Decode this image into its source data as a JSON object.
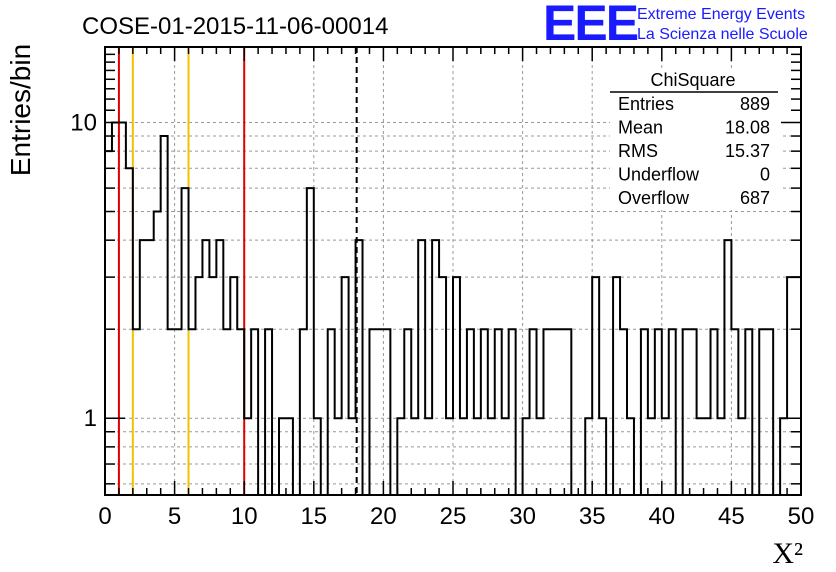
{
  "chart_data": {
    "type": "histogram",
    "title": "COSE-01-2015-11-06-00014",
    "xlabel": "X²",
    "ylabel": "Entries/bin",
    "xlim": [
      0,
      50
    ],
    "ylim": [
      0.55,
      18
    ],
    "yscale": "log",
    "bin_width": 0.5,
    "xticks": [
      0,
      5,
      10,
      15,
      20,
      25,
      30,
      35,
      40,
      45,
      50
    ],
    "yticks": [
      1,
      10
    ],
    "grid": true,
    "bins": [
      {
        "x": 0.0,
        "y": 8
      },
      {
        "x": 0.5,
        "y": 10
      },
      {
        "x": 1.0,
        "y": 10
      },
      {
        "x": 1.5,
        "y": 7
      },
      {
        "x": 2.0,
        "y": 2
      },
      {
        "x": 2.5,
        "y": 4
      },
      {
        "x": 3.0,
        "y": 4
      },
      {
        "x": 3.5,
        "y": 5
      },
      {
        "x": 4.0,
        "y": 9
      },
      {
        "x": 4.5,
        "y": 2
      },
      {
        "x": 5.0,
        "y": 2
      },
      {
        "x": 5.5,
        "y": 6
      },
      {
        "x": 6.0,
        "y": 2
      },
      {
        "x": 6.5,
        "y": 3
      },
      {
        "x": 7.0,
        "y": 4
      },
      {
        "x": 7.5,
        "y": 3
      },
      {
        "x": 8.0,
        "y": 4
      },
      {
        "x": 8.5,
        "y": 2
      },
      {
        "x": 9.0,
        "y": 3
      },
      {
        "x": 9.5,
        "y": 2
      },
      {
        "x": 10.0,
        "y": 1
      },
      {
        "x": 10.5,
        "y": 2
      },
      {
        "x": 11.0,
        "y": 0
      },
      {
        "x": 11.5,
        "y": 2
      },
      {
        "x": 12.0,
        "y": 0
      },
      {
        "x": 12.5,
        "y": 1
      },
      {
        "x": 13.0,
        "y": 1
      },
      {
        "x": 13.5,
        "y": 0
      },
      {
        "x": 14.0,
        "y": 2
      },
      {
        "x": 14.5,
        "y": 6
      },
      {
        "x": 15.0,
        "y": 1
      },
      {
        "x": 15.5,
        "y": 0
      },
      {
        "x": 16.0,
        "y": 2
      },
      {
        "x": 16.5,
        "y": 1
      },
      {
        "x": 17.0,
        "y": 3
      },
      {
        "x": 17.5,
        "y": 1
      },
      {
        "x": 18.0,
        "y": 4
      },
      {
        "x": 18.5,
        "y": 0
      },
      {
        "x": 19.0,
        "y": 2
      },
      {
        "x": 19.5,
        "y": 2
      },
      {
        "x": 20.0,
        "y": 2
      },
      {
        "x": 20.5,
        "y": 0
      },
      {
        "x": 21.0,
        "y": 1
      },
      {
        "x": 21.5,
        "y": 2
      },
      {
        "x": 22.0,
        "y": 1
      },
      {
        "x": 22.5,
        "y": 4
      },
      {
        "x": 23.0,
        "y": 1
      },
      {
        "x": 23.5,
        "y": 4
      },
      {
        "x": 24.0,
        "y": 3
      },
      {
        "x": 24.5,
        "y": 1
      },
      {
        "x": 25.0,
        "y": 3
      },
      {
        "x": 25.5,
        "y": 1
      },
      {
        "x": 26.0,
        "y": 2
      },
      {
        "x": 26.5,
        "y": 1
      },
      {
        "x": 27.0,
        "y": 2
      },
      {
        "x": 27.5,
        "y": 1
      },
      {
        "x": 28.0,
        "y": 2
      },
      {
        "x": 28.5,
        "y": 1
      },
      {
        "x": 29.0,
        "y": 2
      },
      {
        "x": 29.5,
        "y": 0
      },
      {
        "x": 30.0,
        "y": 1
      },
      {
        "x": 30.5,
        "y": 2
      },
      {
        "x": 31.0,
        "y": 1
      },
      {
        "x": 31.5,
        "y": 2
      },
      {
        "x": 32.0,
        "y": 2
      },
      {
        "x": 32.5,
        "y": 2
      },
      {
        "x": 33.0,
        "y": 2
      },
      {
        "x": 33.5,
        "y": 0
      },
      {
        "x": 34.0,
        "y": 0
      },
      {
        "x": 34.5,
        "y": 1
      },
      {
        "x": 35.0,
        "y": 3
      },
      {
        "x": 35.5,
        "y": 1
      },
      {
        "x": 36.0,
        "y": 0
      },
      {
        "x": 36.5,
        "y": 3
      },
      {
        "x": 37.0,
        "y": 2
      },
      {
        "x": 37.5,
        "y": 1
      },
      {
        "x": 38.0,
        "y": 0
      },
      {
        "x": 38.5,
        "y": 2
      },
      {
        "x": 39.0,
        "y": 1
      },
      {
        "x": 39.5,
        "y": 2
      },
      {
        "x": 40.0,
        "y": 1
      },
      {
        "x": 40.5,
        "y": 2
      },
      {
        "x": 41.0,
        "y": 0
      },
      {
        "x": 41.5,
        "y": 2
      },
      {
        "x": 42.0,
        "y": 2
      },
      {
        "x": 42.5,
        "y": 1
      },
      {
        "x": 43.0,
        "y": 1
      },
      {
        "x": 43.5,
        "y": 2
      },
      {
        "x": 44.0,
        "y": 1
      },
      {
        "x": 44.5,
        "y": 4
      },
      {
        "x": 45.0,
        "y": 2
      },
      {
        "x": 45.5,
        "y": 1
      },
      {
        "x": 46.0,
        "y": 2
      },
      {
        "x": 46.5,
        "y": 0
      },
      {
        "x": 47.0,
        "y": 2
      },
      {
        "x": 47.5,
        "y": 2
      },
      {
        "x": 48.0,
        "y": 0
      },
      {
        "x": 48.5,
        "y": 1
      },
      {
        "x": 49.0,
        "y": 3
      },
      {
        "x": 49.5,
        "y": 3
      }
    ],
    "vertical_lines": [
      {
        "x": 1,
        "color": "#e00000",
        "style": "solid"
      },
      {
        "x": 2,
        "color": "#f2c200",
        "style": "solid"
      },
      {
        "x": 6,
        "color": "#f2c200",
        "style": "solid"
      },
      {
        "x": 10,
        "color": "#e00000",
        "style": "solid"
      },
      {
        "x": 18.08,
        "color": "#000000",
        "style": "dashed"
      }
    ]
  },
  "stats": {
    "title": "ChiSquare",
    "rows": [
      {
        "label": "Entries",
        "value": "889"
      },
      {
        "label": "Mean",
        "value": "18.08"
      },
      {
        "label": "RMS",
        "value": "15.37"
      },
      {
        "label": "Underflow",
        "value": "0"
      },
      {
        "label": "Overflow",
        "value": "687"
      }
    ]
  },
  "logo": {
    "mark": "EEE",
    "line1": "Extreme Energy Events",
    "line2": "La Scienza nelle Scuole",
    "color": "#1a1aff"
  }
}
